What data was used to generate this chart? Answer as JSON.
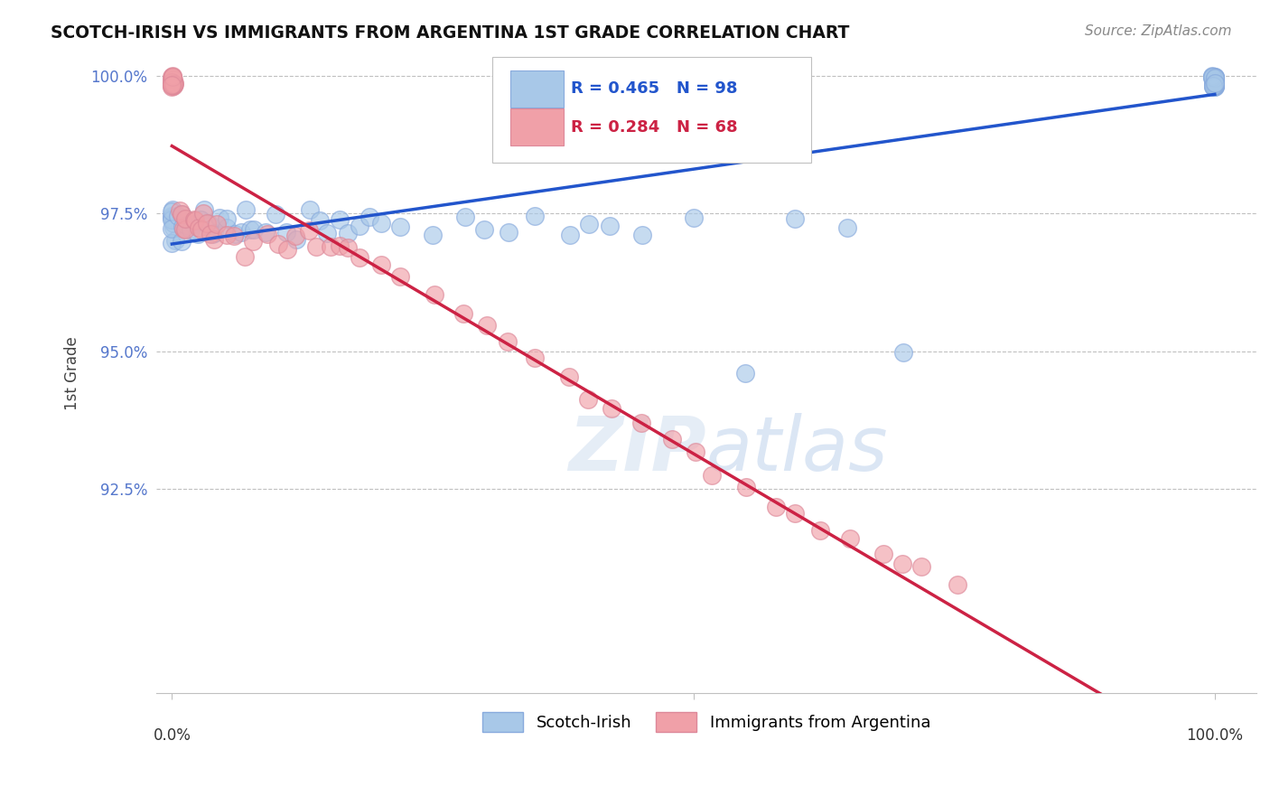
{
  "title": "SCOTCH-IRISH VS IMMIGRANTS FROM ARGENTINA 1ST GRADE CORRELATION CHART",
  "source": "Source: ZipAtlas.com",
  "ylabel": "1st Grade",
  "blue_color": "#a8c8e8",
  "pink_color": "#f0a0a8",
  "blue_line_color": "#2255cc",
  "pink_line_color": "#cc2244",
  "R_blue": 0.465,
  "N_blue": 98,
  "R_pink": 0.284,
  "N_pink": 68,
  "legend_blue": "Scotch-Irish",
  "legend_pink": "Immigrants from Argentina",
  "ytick_labels": [
    "92.5%",
    "95.0%",
    "97.5%",
    "100.0%"
  ],
  "ytick_values": [
    0.925,
    0.95,
    0.975,
    1.0
  ],
  "blue_x": [
    0.0,
    0.0,
    0.0,
    0.0,
    0.0,
    0.0,
    0.0,
    0.0,
    0.0,
    0.0,
    0.005,
    0.008,
    0.01,
    0.012,
    0.015,
    0.018,
    0.02,
    0.025,
    0.028,
    0.03,
    0.035,
    0.038,
    0.04,
    0.045,
    0.05,
    0.055,
    0.06,
    0.065,
    0.07,
    0.075,
    0.08,
    0.09,
    0.1,
    0.11,
    0.12,
    0.13,
    0.14,
    0.15,
    0.16,
    0.17,
    0.18,
    0.19,
    0.2,
    0.22,
    0.25,
    0.28,
    0.3,
    0.32,
    0.35,
    0.38,
    0.4,
    0.42,
    0.45,
    0.5,
    0.55,
    0.6,
    0.65,
    0.7,
    1.0,
    1.0,
    1.0,
    1.0,
    1.0,
    1.0,
    1.0,
    1.0,
    1.0,
    1.0,
    1.0,
    1.0,
    1.0,
    1.0,
    1.0,
    1.0,
    1.0,
    1.0,
    1.0,
    1.0,
    1.0,
    1.0,
    1.0,
    1.0,
    1.0,
    1.0,
    1.0,
    1.0,
    1.0,
    1.0,
    1.0,
    1.0,
    1.0,
    1.0,
    1.0,
    1.0,
    1.0,
    1.0
  ],
  "blue_y": [
    0.974,
    0.972,
    0.975,
    0.973,
    0.971,
    0.976,
    0.969,
    0.974,
    0.972,
    0.975,
    0.974,
    0.972,
    0.971,
    0.975,
    0.973,
    0.974,
    0.972,
    0.971,
    0.975,
    0.973,
    0.974,
    0.972,
    0.971,
    0.975,
    0.973,
    0.974,
    0.972,
    0.971,
    0.975,
    0.973,
    0.972,
    0.971,
    0.974,
    0.972,
    0.971,
    0.975,
    0.973,
    0.972,
    0.974,
    0.971,
    0.972,
    0.975,
    0.973,
    0.972,
    0.971,
    0.975,
    0.973,
    0.972,
    0.974,
    0.972,
    0.974,
    0.973,
    0.972,
    0.975,
    0.947,
    0.974,
    0.972,
    0.95,
    0.999,
    0.999,
    0.999,
    0.999,
    0.999,
    0.999,
    0.999,
    0.999,
    0.999,
    0.999,
    0.999,
    0.999,
    0.999,
    0.999,
    0.999,
    0.999,
    0.999,
    0.999,
    0.999,
    0.999,
    0.999,
    0.999,
    0.999,
    0.999,
    0.999,
    0.999,
    0.999,
    0.999,
    0.999,
    0.999,
    0.999,
    0.999,
    0.999,
    0.999,
    0.999,
    0.999,
    0.999,
    0.999
  ],
  "pink_x": [
    0.0,
    0.0,
    0.0,
    0.0,
    0.0,
    0.0,
    0.0,
    0.0,
    0.0,
    0.0,
    0.0,
    0.0,
    0.0,
    0.0,
    0.0,
    0.0,
    0.0,
    0.0,
    0.005,
    0.008,
    0.01,
    0.012,
    0.015,
    0.018,
    0.02,
    0.025,
    0.028,
    0.03,
    0.035,
    0.038,
    0.04,
    0.045,
    0.05,
    0.06,
    0.07,
    0.08,
    0.09,
    0.1,
    0.11,
    0.12,
    0.13,
    0.14,
    0.15,
    0.16,
    0.17,
    0.18,
    0.2,
    0.22,
    0.25,
    0.28,
    0.3,
    0.32,
    0.35,
    0.38,
    0.4,
    0.42,
    0.45,
    0.48,
    0.5,
    0.52,
    0.55,
    0.58,
    0.6,
    0.62,
    0.65,
    0.68,
    0.7,
    0.72,
    0.75
  ],
  "pink_y": [
    0.999,
    0.999,
    0.999,
    0.999,
    0.999,
    0.999,
    0.999,
    0.999,
    0.999,
    0.999,
    0.999,
    0.999,
    0.999,
    0.999,
    0.999,
    0.999,
    0.999,
    0.999,
    0.975,
    0.973,
    0.974,
    0.972,
    0.975,
    0.973,
    0.974,
    0.972,
    0.975,
    0.973,
    0.974,
    0.972,
    0.971,
    0.974,
    0.972,
    0.97,
    0.968,
    0.97,
    0.972,
    0.97,
    0.968,
    0.97,
    0.972,
    0.97,
    0.968,
    0.97,
    0.969,
    0.967,
    0.965,
    0.963,
    0.96,
    0.957,
    0.954,
    0.951,
    0.948,
    0.945,
    0.942,
    0.94,
    0.937,
    0.934,
    0.931,
    0.928,
    0.925,
    0.922,
    0.92,
    0.918,
    0.916,
    0.914,
    0.912,
    0.91,
    0.908
  ]
}
